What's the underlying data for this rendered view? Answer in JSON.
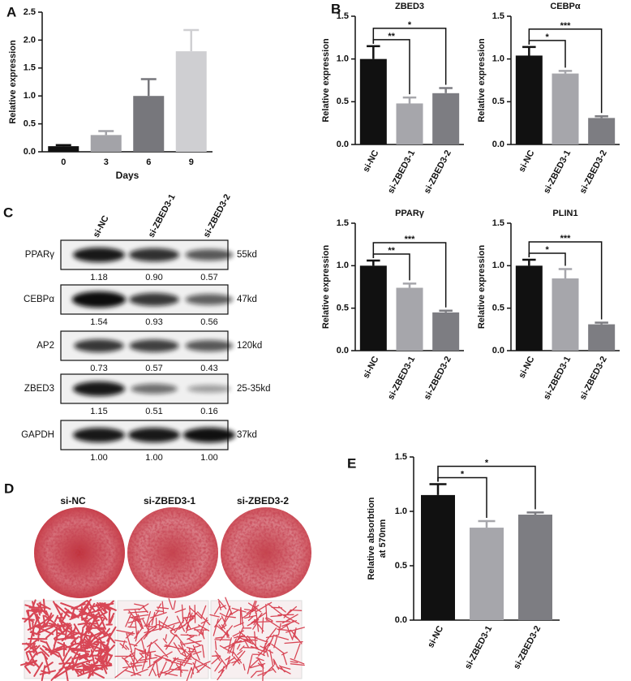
{
  "panels": [
    "A",
    "B",
    "C",
    "D",
    "E"
  ],
  "chart_data": [
    {
      "type": "bar",
      "categories": [
        "0",
        "3",
        "6",
        "9"
      ],
      "values": [
        0.1,
        0.3,
        1.0,
        1.8
      ],
      "errors": [
        0.02,
        0.07,
        0.3,
        0.38
      ],
      "colors": [
        "#111111",
        "#a3a3a8",
        "#77777c",
        "#cfcfd2"
      ],
      "xlabel": "Days",
      "ylabel": "Relative expression",
      "ylim": [
        0,
        2.5
      ],
      "yticks": [
        {
          "value": 0,
          "label": "0.0"
        },
        0.5,
        {
          "value": 1,
          "label": "1.0"
        },
        1.5,
        {
          "value": 2,
          "label": "2.0"
        },
        2.5
      ]
    },
    {
      "type": "bar",
      "title": "ZBED3",
      "categories": [
        "si-NC",
        "si-ZBED3-1",
        "si-ZBED3-2"
      ],
      "values": [
        1.0,
        0.48,
        0.6
      ],
      "errors": [
        0.15,
        0.07,
        0.06
      ],
      "colors": [
        "#111111",
        "#a6a6ab",
        "#7d7d82"
      ],
      "ylabel": "Relative expression",
      "annotations": [
        "**",
        "*"
      ],
      "ylim": [
        0,
        1.5
      ],
      "yticks": [
        {
          "value": 0,
          "label": "0.0"
        },
        0.5,
        {
          "value": 1,
          "label": "1.0"
        },
        1.5
      ]
    },
    {
      "type": "bar",
      "title": "CEBPα",
      "categories": [
        "si-NC",
        "si-ZBED3-1",
        "si-ZBED3-2"
      ],
      "values": [
        1.04,
        0.83,
        0.31
      ],
      "errors": [
        0.1,
        0.03,
        0.02
      ],
      "colors": [
        "#111111",
        "#a6a6ab",
        "#7d7d82"
      ],
      "ylabel": "Relative expression",
      "annotations": [
        "*",
        "***"
      ],
      "ylim": [
        0,
        1.5
      ],
      "yticks": [
        {
          "value": 0,
          "label": "0.0"
        },
        0.5,
        {
          "value": 1,
          "label": "1.0"
        },
        1.5
      ]
    },
    {
      "type": "bar",
      "title": "PPARγ",
      "categories": [
        "si-NC",
        "si-ZBED3-1",
        "si-ZBED3-2"
      ],
      "values": [
        1.0,
        0.74,
        0.45
      ],
      "errors": [
        0.06,
        0.05,
        0.02
      ],
      "colors": [
        "#111111",
        "#a6a6ab",
        "#7d7d82"
      ],
      "ylabel": "Relative expression",
      "annotations": [
        "**",
        "***"
      ],
      "ylim": [
        0,
        1.5
      ],
      "yticks": [
        {
          "value": 0,
          "label": "0.0"
        },
        0.5,
        {
          "value": 1,
          "label": "1.0"
        },
        1.5
      ]
    },
    {
      "type": "bar",
      "title": "PLIN1",
      "categories": [
        "si-NC",
        "si-ZBED3-1",
        "si-ZBED3-2"
      ],
      "values": [
        1.0,
        0.85,
        0.31
      ],
      "errors": [
        0.07,
        0.11,
        0.02
      ],
      "colors": [
        "#111111",
        "#a6a6ab",
        "#7d7d82"
      ],
      "ylabel": "Relative expression",
      "annotations": [
        "*",
        "***"
      ],
      "ylim": [
        0,
        1.5
      ],
      "yticks": [
        {
          "value": 0,
          "label": "0.0"
        },
        0.5,
        {
          "value": 1,
          "label": "1.0"
        },
        1.5
      ]
    },
    {
      "type": "bar",
      "categories": [
        "si-NC",
        "si-ZBED3-1",
        "si-ZBED3-2"
      ],
      "values": [
        1.15,
        0.85,
        0.97
      ],
      "errors": [
        0.1,
        0.06,
        0.02
      ],
      "colors": [
        "#111111",
        "#a6a6ab",
        "#7d7d82"
      ],
      "ylabel": [
        "Relative absorbtion",
        "at 570nm"
      ],
      "annotations": [
        "*",
        "*"
      ],
      "ylim": [
        0,
        1.5
      ],
      "yticks": [
        {
          "value": 0,
          "label": "0.0"
        },
        0.5,
        {
          "value": 1,
          "label": "1.0"
        },
        1.5
      ]
    }
  ],
  "blot": {
    "columns": [
      "si-NC",
      "si-ZBED3-1",
      "si-ZBED3-2"
    ],
    "rows": [
      {
        "name": "PPARγ",
        "size": "55kd",
        "values": [
          "1.18",
          "0.90",
          "0.57"
        ]
      },
      {
        "name": "CEBPα",
        "size": "47kd",
        "values": [
          "1.54",
          "0.93",
          "0.56"
        ]
      },
      {
        "name": "AP2",
        "size": "120kd",
        "values": [
          "0.73",
          "0.57",
          "0.43"
        ]
      },
      {
        "name": "ZBED3",
        "size": "25-35kd",
        "values": [
          "1.15",
          "0.51",
          "0.16"
        ]
      },
      {
        "name": "GAPDH",
        "size": "37kd",
        "values": [
          "1.00",
          "1.00",
          "1.00"
        ]
      }
    ]
  },
  "staining": {
    "groups": [
      "si-NC",
      "si-ZBED3-1",
      "si-ZBED3-2"
    ]
  }
}
